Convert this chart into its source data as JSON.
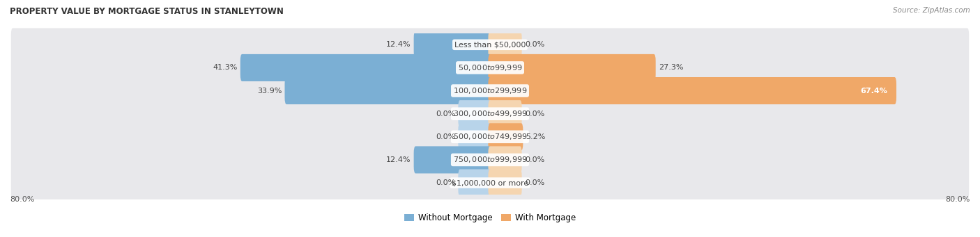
{
  "title": "PROPERTY VALUE BY MORTGAGE STATUS IN STANLEYTOWN",
  "source": "Source: ZipAtlas.com",
  "categories": [
    "Less than $50,000",
    "$50,000 to $99,999",
    "$100,000 to $299,999",
    "$300,000 to $499,999",
    "$500,000 to $749,999",
    "$750,000 to $999,999",
    "$1,000,000 or more"
  ],
  "without_mortgage": [
    12.4,
    41.3,
    33.9,
    0.0,
    0.0,
    12.4,
    0.0
  ],
  "with_mortgage": [
    0.0,
    27.3,
    67.4,
    0.0,
    5.2,
    0.0,
    0.0
  ],
  "max_val": 80.0,
  "color_without": "#7bafd4",
  "color_with": "#f0a868",
  "color_without_zero": "#b8d4ea",
  "color_with_zero": "#f5d5b0",
  "row_bg_color": "#eaeaea",
  "row_bg_alt": "#f5f5f5",
  "label_fontsize": 8.0,
  "title_fontsize": 8.5,
  "source_fontsize": 7.5,
  "legend_fontsize": 8.5,
  "axis_label_fontsize": 8.0
}
